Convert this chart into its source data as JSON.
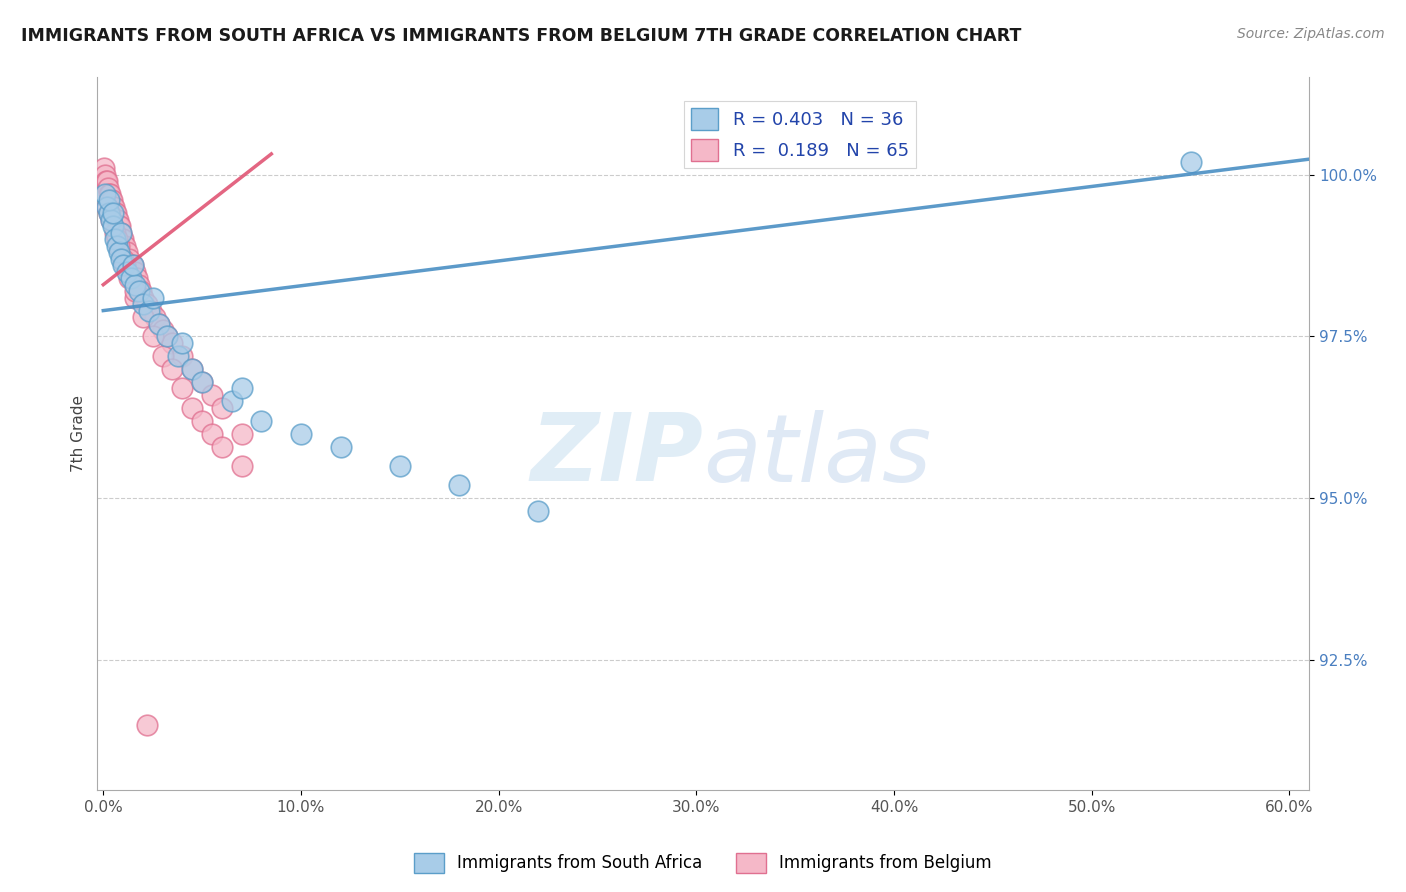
{
  "title": "IMMIGRANTS FROM SOUTH AFRICA VS IMMIGRANTS FROM BELGIUM 7TH GRADE CORRELATION CHART",
  "source": "Source: ZipAtlas.com",
  "ylabel": "7th Grade",
  "blue_color": "#a8cce8",
  "pink_color": "#f5b8c8",
  "blue_edge": "#5b9ec9",
  "pink_edge": "#e07090",
  "trend_blue": "#4a8fc4",
  "trend_pink": "#e05575",
  "legend_blue_label": "R = 0.403   N = 36",
  "legend_pink_label": "R =  0.189   N = 65",
  "xlim": [
    -0.3,
    61.0
  ],
  "ylim": [
    90.5,
    101.5
  ],
  "x_tick_vals": [
    0,
    10,
    20,
    30,
    40,
    50,
    60
  ],
  "y_tick_vals": [
    92.5,
    95.0,
    97.5,
    100.0
  ],
  "sa_x": [
    0.1,
    0.2,
    0.3,
    0.4,
    0.5,
    0.6,
    0.7,
    0.8,
    0.9,
    1.0,
    1.2,
    1.4,
    1.6,
    1.8,
    2.0,
    2.3,
    2.8,
    3.2,
    3.8,
    4.5,
    5.0,
    6.5,
    8.0,
    10.0,
    12.0,
    15.0,
    18.0,
    22.0,
    0.3,
    0.5,
    0.9,
    1.5,
    2.5,
    4.0,
    7.0,
    55.0
  ],
  "sa_y": [
    99.7,
    99.5,
    99.4,
    99.3,
    99.2,
    99.0,
    98.9,
    98.8,
    98.7,
    98.6,
    98.5,
    98.4,
    98.3,
    98.2,
    98.0,
    97.9,
    97.7,
    97.5,
    97.2,
    97.0,
    96.8,
    96.5,
    96.2,
    96.0,
    95.8,
    95.5,
    95.2,
    94.8,
    99.6,
    99.4,
    99.1,
    98.6,
    98.1,
    97.4,
    96.7,
    100.2
  ],
  "be_x": [
    0.05,
    0.1,
    0.15,
    0.2,
    0.25,
    0.3,
    0.35,
    0.4,
    0.45,
    0.5,
    0.55,
    0.6,
    0.65,
    0.7,
    0.75,
    0.8,
    0.85,
    0.9,
    0.95,
    1.0,
    1.1,
    1.2,
    1.3,
    1.4,
    1.5,
    1.6,
    1.7,
    1.8,
    1.9,
    2.0,
    2.2,
    2.4,
    2.6,
    2.8,
    3.0,
    3.2,
    3.5,
    4.0,
    4.5,
    5.0,
    5.5,
    6.0,
    7.0,
    0.2,
    0.4,
    0.6,
    0.8,
    1.0,
    1.3,
    1.6,
    2.0,
    2.5,
    3.0,
    3.5,
    4.0,
    4.5,
    5.0,
    5.5,
    6.0,
    7.0,
    0.3,
    0.7,
    1.1,
    1.6,
    2.2
  ],
  "be_y": [
    100.1,
    100.0,
    99.9,
    99.9,
    99.8,
    99.7,
    99.7,
    99.6,
    99.6,
    99.5,
    99.5,
    99.4,
    99.4,
    99.3,
    99.3,
    99.2,
    99.2,
    99.1,
    99.0,
    99.0,
    98.9,
    98.8,
    98.7,
    98.6,
    98.6,
    98.5,
    98.4,
    98.3,
    98.2,
    98.1,
    98.0,
    97.9,
    97.8,
    97.7,
    97.6,
    97.5,
    97.4,
    97.2,
    97.0,
    96.8,
    96.6,
    96.4,
    96.0,
    99.5,
    99.3,
    99.1,
    98.9,
    98.7,
    98.4,
    98.1,
    97.8,
    97.5,
    97.2,
    97.0,
    96.7,
    96.4,
    96.2,
    96.0,
    95.8,
    95.5,
    99.4,
    99.0,
    98.6,
    98.2,
    91.5
  ],
  "sa_trend_x0": 0.0,
  "sa_trend_y0": 97.9,
  "sa_trend_x1": 60.0,
  "sa_trend_y1": 100.2,
  "be_trend_x0": 0.0,
  "be_trend_y0": 98.5,
  "be_trend_x1": 8.0,
  "be_trend_y1": 100.1
}
